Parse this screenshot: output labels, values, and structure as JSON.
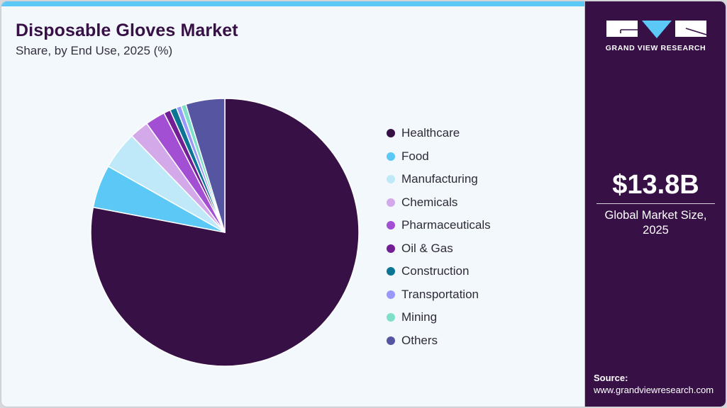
{
  "header": {
    "title": "Disposable Gloves Market",
    "subtitle": "Share, by End Use, 2025 (%)"
  },
  "brand": {
    "logo_text": "GRAND VIEW RESEARCH",
    "colors": {
      "panel": "#371146",
      "accent": "#5bc8f5",
      "background": "#f3f8fc"
    }
  },
  "kpi": {
    "value": "$13.8B",
    "label_line1": "Global Market Size,",
    "label_line2": "2025"
  },
  "source": {
    "label": "Source:",
    "url": "www.grandviewresearch.com"
  },
  "chart_data": {
    "type": "pie",
    "title": "Disposable Gloves Market",
    "subtitle": "Share, by End Use, 2025 (%)",
    "start_angle": "12 o'clock, clockwise",
    "legend_position": "right",
    "categories": [
      "Healthcare",
      "Food",
      "Manufacturing",
      "Chemicals",
      "Pharmaceuticals",
      "Oil & Gas",
      "Construction",
      "Transportation",
      "Mining",
      "Others"
    ],
    "values": [
      78.0,
      5.2,
      4.6,
      2.3,
      2.4,
      0.8,
      0.8,
      0.6,
      0.6,
      4.7
    ],
    "colors": [
      "#371146",
      "#5bc8f5",
      "#bfe9f9",
      "#d4a9ea",
      "#a34fd4",
      "#721f96",
      "#0d7594",
      "#9a98fb",
      "#7ee0c9",
      "#5655a1"
    ],
    "unit": "%"
  }
}
